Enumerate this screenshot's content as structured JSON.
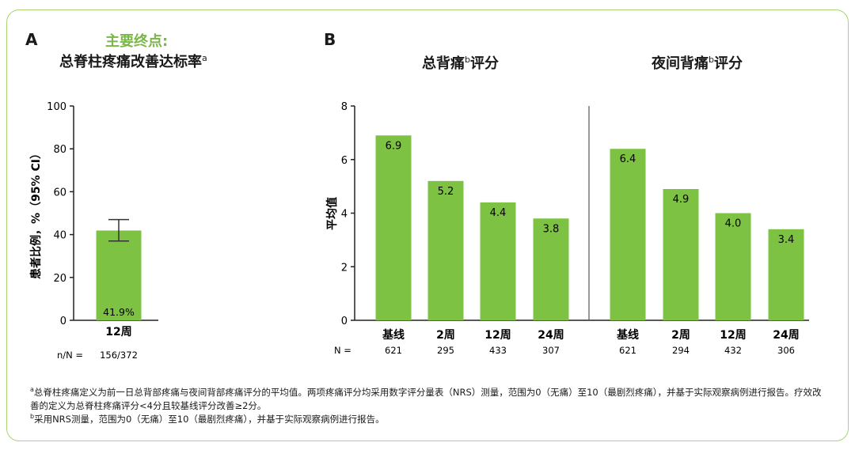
{
  "panel_a": {
    "letter": "A",
    "subtitle": "主要终点:",
    "title": "总脊柱疼痛改善达标率",
    "title_sup": "a",
    "ylabel": "患者比例，%（95% CI）",
    "n_label": "n/N =",
    "n_value": "156/372"
  },
  "panel_b": {
    "letter": "B",
    "title_left": "总背痛",
    "title_right": "夜间背痛",
    "title_sup": "b",
    "title_suffix": "评分",
    "ylabel": "平均值",
    "n_label": "N ="
  },
  "footnotes": {
    "a_mark": "a",
    "a_text": "总脊柱疼痛定义为前一日总背部疼痛与夜间背部疼痛评分的平均值。两项疼痛评分均采用数字评分量表（NRS）测量，范围为0（无痛）至10（最剧烈疼痛），并基于实际观察病例进行报告。疗效改善的定义为总脊柱疼痛评分<4分且较基线评分改善≥2分。",
    "b_mark": "b",
    "b_text": "采用NRS测量，范围为0（无痛）至10（最剧烈疼痛），并基于实际观察病例进行报告。"
  },
  "colors": {
    "bar": "#7dc242",
    "border": "#a9d46f",
    "subtitle": "#7ab648",
    "axis": "#222222"
  },
  "chart_data": [
    {
      "type": "bar",
      "title": "总脊柱疼痛改善达标率",
      "ylabel": "患者比例，%（95% CI）",
      "ylim": [
        0,
        100
      ],
      "yticks": [
        0,
        20,
        40,
        60,
        80,
        100
      ],
      "categories": [
        "12周"
      ],
      "values": [
        41.9
      ],
      "value_labels": [
        "41.9%"
      ],
      "error": {
        "low": [
          37
        ],
        "high": [
          47
        ]
      },
      "n": [
        "156/372"
      ]
    },
    {
      "type": "bar",
      "title": "总背痛评分",
      "ylabel": "平均值",
      "ylim": [
        0,
        8
      ],
      "yticks": [
        0,
        2,
        4,
        6,
        8
      ],
      "categories": [
        "基线",
        "2周",
        "12周",
        "24周"
      ],
      "values": [
        6.9,
        5.2,
        4.4,
        3.8
      ],
      "n": [
        "621",
        "295",
        "433",
        "307"
      ]
    },
    {
      "type": "bar",
      "title": "夜间背痛评分",
      "ylabel": "平均值",
      "ylim": [
        0,
        8
      ],
      "categories": [
        "基线",
        "2周",
        "12周",
        "24周"
      ],
      "values": [
        6.4,
        4.9,
        4.0,
        3.4
      ],
      "n": [
        "621",
        "294",
        "432",
        "306"
      ]
    }
  ]
}
